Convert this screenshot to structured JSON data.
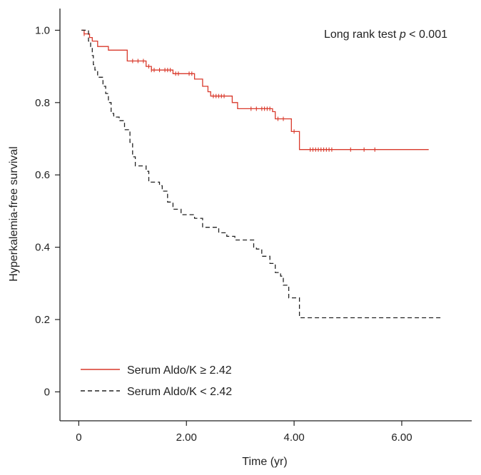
{
  "chart_data": {
    "type": "line",
    "subtype": "kaplan-meier survival curve",
    "title": "",
    "xlabel": "Time (yr)",
    "ylabel": "Hyperkalemia-free survival",
    "xlim": [
      -0.35,
      7.3
    ],
    "ylim": [
      -0.08,
      1.06
    ],
    "x_ticks": [
      0,
      2,
      4,
      6
    ],
    "x_tick_labels": [
      "0",
      "2.00",
      "4.00",
      "6.00"
    ],
    "y_ticks": [
      0,
      0.2,
      0.4,
      0.6,
      0.8,
      1.0
    ],
    "y_tick_labels": [
      "0",
      "0.2",
      "0.4",
      "0.6",
      "0.8",
      "1.0"
    ],
    "grid": false,
    "annotation": {
      "prefix": "Long rank test ",
      "italic": "p",
      "suffix": " < 0.001",
      "position": "top-right"
    },
    "legend_position": "bottom-left",
    "series": [
      {
        "name": "Serum Aldo/K ≥ 2.42",
        "color": "#d9392b",
        "dash": "solid",
        "steps": [
          [
            0.05,
            1.0
          ],
          [
            0.1,
            0.99
          ],
          [
            0.2,
            0.98
          ],
          [
            0.25,
            0.97
          ],
          [
            0.35,
            0.955
          ],
          [
            0.55,
            0.945
          ],
          [
            0.9,
            0.93
          ],
          [
            0.9,
            0.915
          ],
          [
            1.25,
            0.9
          ],
          [
            1.35,
            0.89
          ],
          [
            1.75,
            0.88
          ],
          [
            2.15,
            0.865
          ],
          [
            2.3,
            0.845
          ],
          [
            2.4,
            0.83
          ],
          [
            2.45,
            0.818
          ],
          [
            2.85,
            0.8
          ],
          [
            2.95,
            0.783
          ],
          [
            3.6,
            0.775
          ],
          [
            3.65,
            0.755
          ],
          [
            3.95,
            0.72
          ],
          [
            4.1,
            0.67
          ],
          [
            6.5,
            0.67
          ]
        ],
        "censor_times": [
          0.1,
          1.0,
          1.1,
          1.2,
          1.3,
          1.35,
          1.4,
          1.5,
          1.6,
          1.65,
          1.7,
          1.8,
          1.85,
          2.05,
          2.1,
          2.5,
          2.55,
          2.6,
          2.65,
          2.7,
          3.2,
          3.3,
          3.4,
          3.45,
          3.5,
          3.55,
          3.7,
          3.8,
          4.0,
          4.3,
          4.35,
          4.4,
          4.45,
          4.5,
          4.55,
          4.6,
          4.65,
          4.7,
          5.05,
          5.3,
          5.5
        ]
      },
      {
        "name": "Serum Aldo/K < 2.42",
        "color": "#222222",
        "dash": "dashed",
        "steps": [
          [
            0.05,
            1.0
          ],
          [
            0.18,
            0.97
          ],
          [
            0.22,
            0.955
          ],
          [
            0.25,
            0.93
          ],
          [
            0.27,
            0.905
          ],
          [
            0.3,
            0.89
          ],
          [
            0.35,
            0.87
          ],
          [
            0.45,
            0.845
          ],
          [
            0.5,
            0.825
          ],
          [
            0.55,
            0.8
          ],
          [
            0.6,
            0.77
          ],
          [
            0.65,
            0.76
          ],
          [
            0.75,
            0.75
          ],
          [
            0.85,
            0.725
          ],
          [
            0.95,
            0.69
          ],
          [
            1.0,
            0.65
          ],
          [
            1.05,
            0.625
          ],
          [
            1.25,
            0.61
          ],
          [
            1.3,
            0.58
          ],
          [
            1.5,
            0.57
          ],
          [
            1.55,
            0.555
          ],
          [
            1.65,
            0.525
          ],
          [
            1.75,
            0.505
          ],
          [
            1.9,
            0.49
          ],
          [
            2.15,
            0.48
          ],
          [
            2.3,
            0.455
          ],
          [
            2.6,
            0.44
          ],
          [
            2.75,
            0.43
          ],
          [
            2.9,
            0.42
          ],
          [
            3.25,
            0.4
          ],
          [
            3.3,
            0.395
          ],
          [
            3.4,
            0.375
          ],
          [
            3.55,
            0.355
          ],
          [
            3.65,
            0.33
          ],
          [
            3.75,
            0.32
          ],
          [
            3.8,
            0.295
          ],
          [
            3.9,
            0.26
          ],
          [
            4.1,
            0.205
          ],
          [
            6.75,
            0.205
          ]
        ],
        "censor_times": []
      }
    ]
  }
}
